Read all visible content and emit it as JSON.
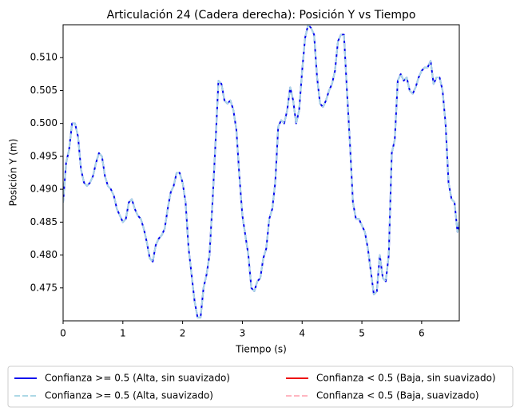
{
  "chart_data": {
    "type": "line",
    "title": "Articulación 24 (Cadera derecha): Posición Y vs Tiempo",
    "xlabel": "Tiempo (s)",
    "ylabel": "Posición Y (m)",
    "x": [
      0,
      0.05,
      0.1,
      0.15,
      0.2,
      0.25,
      0.3,
      0.35,
      0.4,
      0.45,
      0.5,
      0.55,
      0.6,
      0.65,
      0.7,
      0.75,
      0.8,
      0.85,
      0.9,
      0.95,
      1.0,
      1.05,
      1.1,
      1.15,
      1.2,
      1.25,
      1.3,
      1.35,
      1.4,
      1.45,
      1.5,
      1.55,
      1.6,
      1.65,
      1.7,
      1.75,
      1.8,
      1.85,
      1.9,
      1.95,
      2.0,
      2.05,
      2.1,
      2.15,
      2.2,
      2.25,
      2.3,
      2.35,
      2.4,
      2.45,
      2.5,
      2.55,
      2.6,
      2.65,
      2.7,
      2.75,
      2.8,
      2.85,
      2.9,
      2.95,
      3.0,
      3.05,
      3.1,
      3.15,
      3.2,
      3.25,
      3.3,
      3.35,
      3.4,
      3.45,
      3.5,
      3.55,
      3.6,
      3.65,
      3.7,
      3.75,
      3.8,
      3.85,
      3.9,
      3.95,
      4.0,
      4.05,
      4.1,
      4.15,
      4.2,
      4.25,
      4.3,
      4.35,
      4.4,
      4.45,
      4.5,
      4.55,
      4.6,
      4.65,
      4.7,
      4.75,
      4.8,
      4.85,
      4.9,
      4.95,
      5.0,
      5.05,
      5.1,
      5.15,
      5.2,
      5.25,
      5.3,
      5.35,
      5.4,
      5.45,
      5.5,
      5.55,
      5.6,
      5.65,
      5.7,
      5.75,
      5.8,
      5.85,
      5.9,
      5.95,
      6.0,
      6.05,
      6.1,
      6.15,
      6.2,
      6.25,
      6.3,
      6.35,
      6.4,
      6.45,
      6.5,
      6.55,
      6.6,
      6.63
    ],
    "series": [
      {
        "name": "Confianza >= 0.5 (Alta, sin suavizado)",
        "color": "#0000ee",
        "linestyle": "solid",
        "values": [
          0.488,
          0.494,
          0.496,
          0.5,
          0.5,
          0.498,
          0.493,
          0.491,
          0.4905,
          0.491,
          0.492,
          0.494,
          0.4955,
          0.495,
          0.492,
          0.4905,
          0.49,
          0.489,
          0.487,
          0.486,
          0.485,
          0.4855,
          0.488,
          0.4885,
          0.487,
          0.486,
          0.4855,
          0.484,
          0.482,
          0.4795,
          0.479,
          0.4815,
          0.4825,
          0.483,
          0.484,
          0.487,
          0.4895,
          0.4905,
          0.4925,
          0.4925,
          0.491,
          0.488,
          0.481,
          0.477,
          0.473,
          0.4705,
          0.4705,
          0.475,
          0.477,
          0.48,
          0.488,
          0.497,
          0.5065,
          0.506,
          0.5035,
          0.503,
          0.5035,
          0.502,
          0.499,
          0.492,
          0.486,
          0.483,
          0.48,
          0.475,
          0.4745,
          0.476,
          0.4765,
          0.4795,
          0.481,
          0.4855,
          0.487,
          0.491,
          0.4995,
          0.5005,
          0.5,
          0.502,
          0.5055,
          0.5035,
          0.5,
          0.502,
          0.508,
          0.513,
          0.515,
          0.5145,
          0.5135,
          0.507,
          0.503,
          0.5025,
          0.5035,
          0.505,
          0.506,
          0.508,
          0.5125,
          0.5135,
          0.5135,
          0.505,
          0.497,
          0.488,
          0.4855,
          0.4855,
          0.4845,
          0.4835,
          0.481,
          0.4775,
          0.474,
          0.4745,
          0.48,
          0.4765,
          0.476,
          0.48,
          0.4955,
          0.4975,
          0.5065,
          0.5075,
          0.5065,
          0.507,
          0.505,
          0.5045,
          0.5055,
          0.507,
          0.508,
          0.5085,
          0.5085,
          0.5095,
          0.506,
          0.507,
          0.507,
          0.505,
          0.5,
          0.491,
          0.4885,
          0.488,
          0.4835,
          0.485
        ]
      },
      {
        "name": "Confianza < 0.5 (Baja, sin suavizado)",
        "color": "#ee0000",
        "linestyle": "solid",
        "values": [
          null,
          null,
          null,
          null,
          null,
          null,
          null,
          null,
          null,
          null,
          null,
          null,
          null,
          null,
          null,
          null,
          null,
          null,
          null,
          null,
          null,
          null,
          null,
          null,
          null,
          null,
          null,
          null,
          null,
          null,
          null,
          null,
          null,
          null,
          null,
          null,
          null,
          null,
          null,
          null,
          null,
          null,
          null,
          null,
          null,
          null,
          null,
          null,
          null,
          null,
          null,
          null,
          null,
          null,
          null,
          null,
          null,
          null,
          null,
          null,
          null,
          null,
          null,
          null,
          null,
          null,
          null,
          null,
          null,
          null,
          null,
          null,
          null,
          null,
          null,
          null,
          null,
          null,
          null,
          null,
          null,
          null,
          null,
          null,
          null,
          null,
          null,
          null,
          null,
          null,
          null,
          null,
          null,
          null,
          null,
          null,
          null,
          null,
          null,
          null,
          null,
          null,
          null,
          null,
          null,
          null,
          null,
          null,
          null,
          null,
          null,
          null,
          null,
          null,
          null,
          null,
          null,
          null,
          null,
          null,
          null,
          null,
          null,
          null,
          null,
          null,
          null,
          null,
          null,
          null,
          null,
          null,
          null,
          null
        ]
      },
      {
        "name": "Confianza >= 0.5 (Alta, suavizado)",
        "color": "#add8e6",
        "linestyle": "dashed",
        "values": [
          0.488,
          0.494,
          0.496,
          0.5,
          0.5,
          0.498,
          0.493,
          0.491,
          0.4905,
          0.491,
          0.492,
          0.494,
          0.4955,
          0.495,
          0.492,
          0.4905,
          0.49,
          0.489,
          0.487,
          0.486,
          0.485,
          0.4855,
          0.488,
          0.4885,
          0.487,
          0.486,
          0.4855,
          0.484,
          0.482,
          0.4795,
          0.479,
          0.4815,
          0.4825,
          0.483,
          0.484,
          0.487,
          0.4895,
          0.4905,
          0.4925,
          0.4925,
          0.491,
          0.488,
          0.481,
          0.477,
          0.473,
          0.4705,
          0.4705,
          0.475,
          0.477,
          0.48,
          0.488,
          0.497,
          0.5065,
          0.506,
          0.5035,
          0.503,
          0.5035,
          0.502,
          0.499,
          0.492,
          0.486,
          0.483,
          0.48,
          0.475,
          0.4745,
          0.476,
          0.4765,
          0.4795,
          0.481,
          0.4855,
          0.487,
          0.491,
          0.4995,
          0.5005,
          0.5,
          0.502,
          0.5055,
          0.5035,
          0.5,
          0.502,
          0.508,
          0.513,
          0.515,
          0.5145,
          0.5135,
          0.507,
          0.503,
          0.5025,
          0.5035,
          0.505,
          0.506,
          0.508,
          0.5125,
          0.5135,
          0.5135,
          0.505,
          0.497,
          0.488,
          0.4855,
          0.4855,
          0.4845,
          0.4835,
          0.481,
          0.4775,
          0.474,
          0.4745,
          0.48,
          0.4765,
          0.476,
          0.48,
          0.4955,
          0.4975,
          0.5065,
          0.5075,
          0.5065,
          0.507,
          0.505,
          0.5045,
          0.5055,
          0.507,
          0.508,
          0.5085,
          0.5085,
          0.5095,
          0.506,
          0.507,
          0.507,
          0.505,
          0.5,
          0.491,
          0.4885,
          0.488,
          0.4835,
          0.485
        ]
      },
      {
        "name": "Confianza < 0.5 (Baja, suavizado)",
        "color": "#ffb6c1",
        "linestyle": "dashed",
        "values": [
          null,
          null,
          null,
          null,
          null,
          null,
          null,
          null,
          null,
          null,
          null,
          null,
          null,
          null,
          null,
          null,
          null,
          null,
          null,
          null,
          null,
          null,
          null,
          null,
          null,
          null,
          null,
          null,
          null,
          null,
          null,
          null,
          null,
          null,
          null,
          null,
          null,
          null,
          null,
          null,
          null,
          null,
          null,
          null,
          null,
          null,
          null,
          null,
          null,
          null,
          null,
          null,
          null,
          null,
          null,
          null,
          null,
          null,
          null,
          null,
          null,
          null,
          null,
          null,
          null,
          null,
          null,
          null,
          null,
          null,
          null,
          null,
          null,
          null,
          null,
          null,
          null,
          null,
          null,
          null,
          null,
          null,
          null,
          null,
          null,
          null,
          null,
          null,
          null,
          null,
          null,
          null,
          null,
          null,
          null,
          null,
          null,
          null,
          null,
          null,
          null,
          null,
          null,
          null,
          null,
          null,
          null,
          null,
          null,
          null,
          null,
          null,
          null,
          null,
          null,
          null,
          null,
          null,
          null,
          null,
          null,
          null,
          null,
          null,
          null,
          null,
          null,
          null,
          null,
          null,
          null,
          null,
          null,
          null
        ]
      }
    ],
    "xlim": [
      0,
      6.63
    ],
    "xticks": [
      0,
      1,
      2,
      3,
      4,
      5,
      6
    ],
    "ylim": [
      0.47,
      0.515
    ],
    "yticks": [
      0.475,
      {
        "value": 0.48,
        "label": "0.480"
      },
      0.485,
      {
        "value": 0.49,
        "label": "0.490"
      },
      0.495,
      {
        "value": 0.5,
        "label": "0.500"
      },
      0.505,
      {
        "value": 0.51,
        "label": "0.510"
      }
    ],
    "grid": false,
    "legend": "below"
  }
}
